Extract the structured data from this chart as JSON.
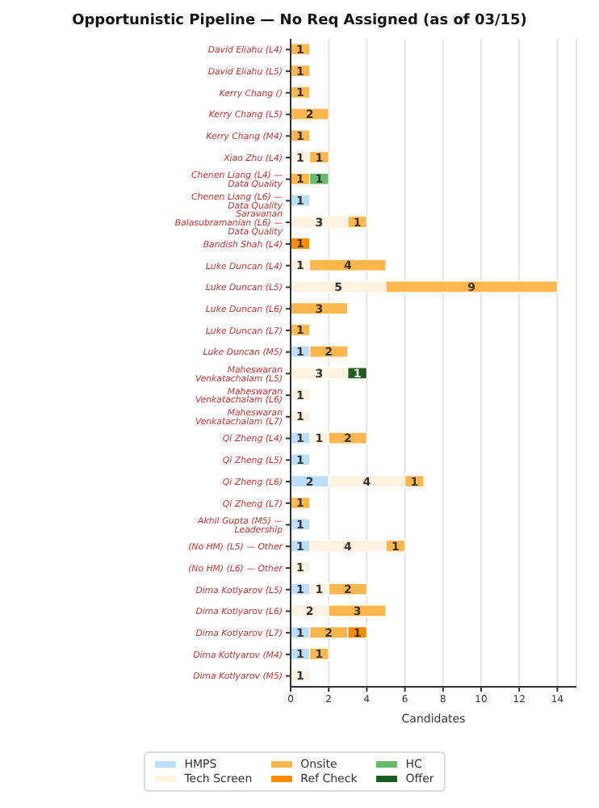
{
  "chart_data": {
    "type": "bar",
    "orientation": "horizontal",
    "stacked": true,
    "title": "Opportunistic Pipeline — No Req Assigned (as of 03/15)",
    "xlabel": "Candidates",
    "categories": [
      "David Eliahu (L4)",
      "David Eliahu (L5)",
      "Kerry Chang ()",
      "Kerry Chang (L5)",
      "Kerry Chang (M4)",
      "Xiao Zhu (L4)",
      "Chenen Liang (L4) — Data Quality",
      "Chenen Liang (L6) — Data Quality",
      "Saravanan Balasubramanian (L6) — Data Quality",
      "Bandish Shah (L4)",
      "Luke Duncan (L4)",
      "Luke Duncan (L5)",
      "Luke Duncan (L6)",
      "Luke Duncan (L7)",
      "Luke Duncan (M5)",
      "Maheswaran Venkatachalam (L5)",
      "Maheswaran Venkatachalam (L6)",
      "Maheswaran Venkatachalam (L7)",
      "Qi Zheng (L4)",
      "Qi Zheng (L5)",
      "Qi Zheng (L6)",
      "Qi Zheng (L7)",
      "Akhil Gupta (M5) — Leadership",
      "(No HM) (L5) — Other",
      "(No HM) (L6) — Other",
      "Dima Kotlyarov (L5)",
      "Dima Kotlyarov (L6)",
      "Dima Kotlyarov (L7)",
      "Dima Kotlyarov (M4)",
      "Dima Kotlyarov (M5)"
    ],
    "series": [
      {
        "name": "HMPS",
        "color": "#bbdefb",
        "values": [
          null,
          null,
          null,
          null,
          null,
          null,
          null,
          1,
          null,
          null,
          null,
          null,
          null,
          null,
          1,
          null,
          null,
          null,
          1,
          1,
          2,
          null,
          1,
          1,
          null,
          1,
          null,
          1,
          1,
          null
        ]
      },
      {
        "name": "Tech Screen",
        "color": "#fdf1df",
        "values": [
          null,
          null,
          null,
          null,
          null,
          1,
          null,
          null,
          3,
          null,
          1,
          5,
          null,
          null,
          null,
          3,
          1,
          1,
          1,
          null,
          4,
          null,
          null,
          4,
          1,
          1,
          2,
          null,
          null,
          1
        ]
      },
      {
        "name": "Onsite",
        "color": "#ffb74d",
        "values": [
          1,
          1,
          1,
          2,
          1,
          1,
          1,
          null,
          1,
          null,
          4,
          9,
          3,
          1,
          2,
          null,
          null,
          null,
          2,
          null,
          1,
          1,
          null,
          1,
          null,
          2,
          3,
          2,
          1,
          null
        ]
      },
      {
        "name": "Ref Check",
        "color": "#fb8c00",
        "values": [
          null,
          null,
          null,
          null,
          null,
          null,
          null,
          null,
          null,
          1,
          null,
          null,
          null,
          null,
          null,
          null,
          null,
          null,
          null,
          null,
          null,
          null,
          null,
          null,
          null,
          null,
          null,
          1,
          null,
          null
        ]
      },
      {
        "name": "HC",
        "color": "#66bb6a",
        "values": [
          null,
          null,
          null,
          null,
          null,
          null,
          1,
          null,
          null,
          null,
          null,
          null,
          null,
          null,
          null,
          null,
          null,
          null,
          null,
          null,
          null,
          null,
          null,
          null,
          null,
          null,
          null,
          null,
          null,
          null
        ]
      },
      {
        "name": "Offer",
        "color": "#1b5e20",
        "values": [
          null,
          null,
          null,
          null,
          null,
          null,
          null,
          null,
          null,
          null,
          null,
          null,
          null,
          null,
          null,
          1,
          null,
          null,
          null,
          null,
          null,
          null,
          null,
          null,
          null,
          null,
          null,
          null,
          null,
          null
        ]
      }
    ],
    "xlim": [
      0,
      15
    ],
    "xticks": [
      0,
      2,
      4,
      6,
      8,
      10,
      12,
      14
    ],
    "grid": "x",
    "legend": "bottom",
    "data_labels": true
  }
}
